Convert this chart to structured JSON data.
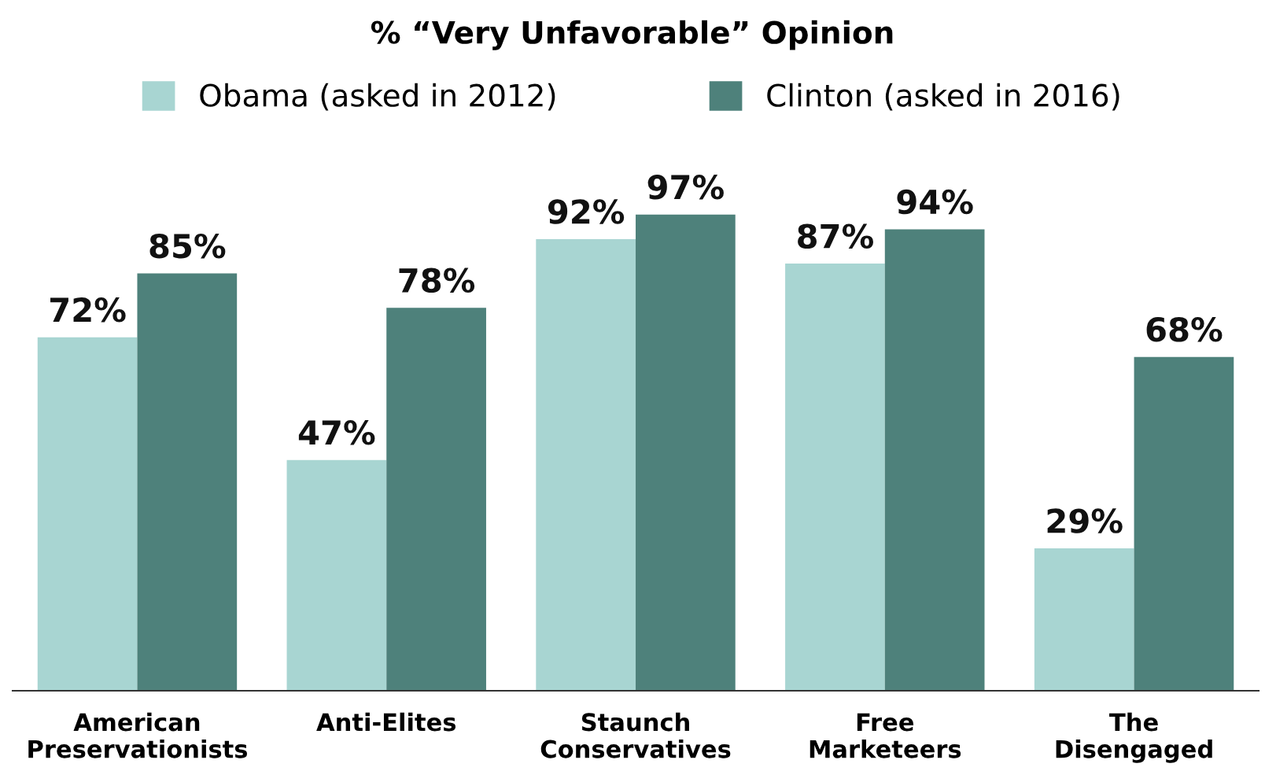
{
  "chart_data": {
    "type": "bar",
    "title": "% “Very Unfavorable” Opinion",
    "categories": [
      "American\nPreservationists",
      "Anti-Elites",
      "Staunch\nConservatives",
      "Free\nMarketeers",
      "The\nDisengaged"
    ],
    "series": [
      {
        "name": "Obama (asked in 2012)",
        "color": "#a8d5d2",
        "values": [
          72,
          47,
          92,
          87,
          29
        ],
        "value_labels": [
          "72%",
          "47%",
          "92%",
          "87%",
          "29%"
        ]
      },
      {
        "name": "Clinton (asked in 2016)",
        "color": "#4e817b",
        "values": [
          85,
          78,
          97,
          94,
          68
        ],
        "value_labels": [
          "85%",
          "78%",
          "97%",
          "94%",
          "68%"
        ]
      }
    ],
    "tick_labels": "x",
    "legend": "top",
    "grid": false
  }
}
